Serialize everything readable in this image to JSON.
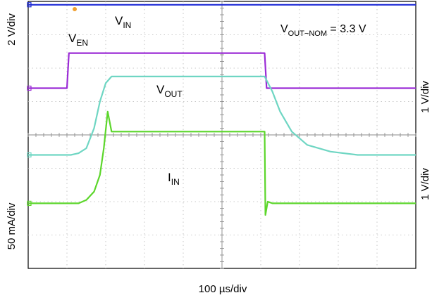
{
  "chart_data": {
    "type": "line",
    "title": "",
    "annotation": "V",
    "annotation_sub": "OUT−NOM",
    "annotation_tail": " = 3.3 V",
    "x_axis": {
      "label": "100 µs/div",
      "divisions": 10,
      "unit_per_div": "100 µs"
    },
    "y_axis": {
      "divisions": 8
    },
    "left_labels": [
      {
        "text": "2 V/div",
        "channel": "VIN / VEN"
      },
      {
        "text": "50 mA/div",
        "channel": "IIN"
      }
    ],
    "right_labels": [
      {
        "text": "1 V/div",
        "channel": "VEN"
      },
      {
        "text": "1 V/div",
        "channel": "VOUT"
      }
    ],
    "series": [
      {
        "name": "V",
        "sub": "IN",
        "color": "#1f2bd6",
        "x": [
          0,
          10
        ],
        "y": [
          7.9,
          7.9
        ]
      },
      {
        "name": "V",
        "sub": "EN",
        "color": "#9b2bd6",
        "x": [
          0,
          1.0,
          1.05,
          6.1,
          6.15,
          10
        ],
        "y": [
          5.4,
          5.4,
          6.45,
          6.45,
          5.4,
          5.4
        ]
      },
      {
        "name": "V",
        "sub": "OUT",
        "color": "#6fd6c3",
        "x": [
          0,
          1.1,
          1.3,
          1.5,
          1.7,
          1.85,
          2.0,
          2.15,
          6.1,
          6.3,
          6.5,
          6.8,
          7.2,
          7.8,
          8.5,
          10
        ],
        "y": [
          3.4,
          3.4,
          3.45,
          3.6,
          4.2,
          5.0,
          5.55,
          5.75,
          5.75,
          5.3,
          4.7,
          4.1,
          3.7,
          3.5,
          3.4,
          3.4
        ]
      },
      {
        "name": "I",
        "sub": "IN",
        "color": "#5cd62b",
        "x": [
          0,
          1.3,
          1.5,
          1.7,
          1.85,
          1.95,
          2.05,
          2.15,
          2.4,
          6.1,
          6.12,
          6.18,
          6.3,
          10
        ],
        "y": [
          1.95,
          1.95,
          2.05,
          2.3,
          2.8,
          3.6,
          4.7,
          4.1,
          4.1,
          4.1,
          1.6,
          2.0,
          1.95,
          1.95
        ]
      }
    ],
    "grid": true,
    "legend": "inline-labels"
  }
}
